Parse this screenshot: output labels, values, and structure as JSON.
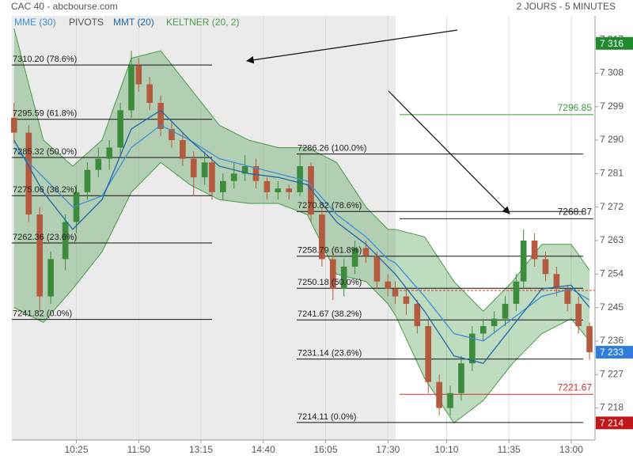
{
  "chart_data": {
    "type": "candlestick",
    "title": "CAC 40 - abcbourse.com",
    "subtitle": "2 JOURS - 5 MINUTES",
    "up_color": "#3d8b3d",
    "down_color": "#b35a3f",
    "x": [
      0,
      4,
      7,
      10,
      14,
      17,
      20,
      23,
      26,
      29,
      32,
      34,
      37,
      40,
      43,
      46,
      49,
      52,
      54,
      57,
      60,
      63,
      66,
      69,
      72,
      75,
      78,
      81,
      84,
      87,
      90,
      93,
      96,
      99,
      102,
      104,
      107,
      110,
      113,
      116,
      119,
      122,
      125,
      128,
      131,
      134,
      137,
      139,
      142,
      145,
      148,
      151,
      154,
      157
    ],
    "open": [
      7296,
      7292,
      7270,
      7248,
      7258,
      7268,
      7276,
      7282,
      7285,
      7288,
      7298,
      7310,
      7305,
      7300,
      7293,
      7290,
      7285,
      7280,
      7284,
      7276,
      7279,
      7281,
      7283,
      7279,
      7276,
      7277,
      7276,
      7283,
      7270,
      7258,
      7250,
      7256,
      7261,
      7259,
      7252,
      7250,
      7248,
      7246,
      7240,
      7225,
      7218,
      7222,
      7230,
      7238,
      7240,
      7242,
      7246,
      7252,
      7263,
      7258,
      7254,
      7250,
      7246,
      7240
    ],
    "high": [
      7300,
      7294,
      7272,
      7260,
      7270,
      7278,
      7284,
      7288,
      7290,
      7300,
      7314,
      7312,
      7307,
      7302,
      7295,
      7292,
      7287,
      7287,
      7285,
      7281,
      7284,
      7286,
      7285,
      7280,
      7279,
      7278,
      7286,
      7284,
      7272,
      7260,
      7258,
      7263,
      7263,
      7260,
      7254,
      7252,
      7250,
      7247,
      7242,
      7227,
      7224,
      7232,
      7240,
      7242,
      7244,
      7248,
      7254,
      7266,
      7265,
      7260,
      7256,
      7251,
      7248,
      7241
    ],
    "low": [
      7289,
      7268,
      7244,
      7246,
      7255,
      7265,
      7274,
      7280,
      7282,
      7286,
      7296,
      7303,
      7298,
      7291,
      7288,
      7283,
      7275,
      7278,
      7274,
      7274,
      7277,
      7279,
      7277,
      7274,
      7274,
      7274,
      7275,
      7268,
      7256,
      7247,
      7248,
      7254,
      7257,
      7250,
      7248,
      7246,
      7243,
      7238,
      7222,
      7216,
      7216,
      7220,
      7228,
      7236,
      7238,
      7240,
      7244,
      7250,
      7256,
      7252,
      7248,
      7244,
      7238,
      7231
    ],
    "close": [
      7292,
      7270,
      7248,
      7258,
      7268,
      7276,
      7282,
      7285,
      7288,
      7298,
      7310,
      7305,
      7300,
      7293,
      7290,
      7285,
      7280,
      7284,
      7276,
      7279,
      7281,
      7283,
      7279,
      7276,
      7277,
      7276,
      7283,
      7270,
      7258,
      7250,
      7256,
      7261,
      7259,
      7252,
      7250,
      7248,
      7246,
      7240,
      7225,
      7218,
      7222,
      7230,
      7238,
      7240,
      7242,
      7246,
      7252,
      7263,
      7258,
      7254,
      7250,
      7246,
      7240,
      7233
    ],
    "xlim": [
      -0.6,
      158.5
    ],
    "xticks": [
      {
        "value": 17,
        "label": "10:25"
      },
      {
        "value": 34,
        "label": "11:50"
      },
      {
        "value": 51,
        "label": "13:15"
      },
      {
        "value": 68,
        "label": "14:40"
      },
      {
        "value": 85,
        "label": "16:05"
      },
      {
        "value": 102,
        "label": "17:30"
      },
      {
        "value": 118,
        "label": "10:10"
      },
      {
        "value": 135,
        "label": "11:35"
      },
      {
        "value": 152,
        "label": "13:00"
      }
    ],
    "ylim": [
      7209.4,
      7323.4
    ],
    "yticks": [
      {
        "value": 7218,
        "label": "7 218"
      },
      {
        "value": 7227,
        "label": "7 227"
      },
      {
        "value": 7236,
        "label": "7 236"
      },
      {
        "value": 7245,
        "label": "7 245"
      },
      {
        "value": 7254,
        "label": "7 254"
      },
      {
        "value": 7263,
        "label": "7 263"
      },
      {
        "value": 7272,
        "label": "7 272"
      },
      {
        "value": 7281,
        "label": "7 281"
      },
      {
        "value": 7290,
        "label": "7 290"
      },
      {
        "value": 7299,
        "label": "7 299"
      },
      {
        "value": 7308,
        "label": "7 308"
      },
      {
        "value": 7317,
        "label": "7 317"
      }
    ],
    "series": [
      {
        "name": "MME (30)",
        "color": "#3d8fd8",
        "x": [
          0,
          8,
          16,
          24,
          32,
          40,
          48,
          56,
          64,
          72,
          80,
          88,
          96,
          102,
          104,
          112,
          120,
          128,
          136,
          144,
          152,
          157
        ],
        "values": [
          7288,
          7280,
          7272,
          7275,
          7288,
          7294,
          7290,
          7285,
          7283,
          7281,
          7279,
          7270,
          7264,
          7258,
          7257,
          7248,
          7238,
          7236,
          7242,
          7248,
          7250,
          7247
        ]
      },
      {
        "name": "MMT (20)",
        "color": "#1f66a8",
        "x": [
          0,
          8,
          16,
          24,
          32,
          40,
          48,
          56,
          64,
          72,
          80,
          88,
          96,
          102,
          104,
          112,
          120,
          128,
          136,
          144,
          152,
          157
        ],
        "values": [
          7290,
          7276,
          7266,
          7274,
          7293,
          7298,
          7290,
          7283,
          7281,
          7280,
          7278,
          7268,
          7262,
          7256,
          7254,
          7244,
          7232,
          7230,
          7240,
          7250,
          7251,
          7245
        ]
      }
    ],
    "keltner": {
      "name": "KELTNER (20, 2)",
      "color": "#4a9a4a",
      "x": [
        0,
        8,
        16,
        24,
        32,
        40,
        48,
        56,
        64,
        72,
        80,
        88,
        96,
        102,
        104,
        112,
        120,
        128,
        136,
        144,
        152,
        157
      ],
      "upper": [
        7320,
        7290,
        7283,
        7290,
        7312,
        7314,
        7304,
        7294,
        7290,
        7288,
        7288,
        7284,
        7272,
        7266,
        7266,
        7264,
        7252,
        7244,
        7252,
        7262,
        7262,
        7255
      ],
      "lower": [
        7245,
        7241,
        7250,
        7260,
        7276,
        7284,
        7278,
        7274,
        7273,
        7273,
        7270,
        7254,
        7252,
        7246,
        7243,
        7226,
        7214,
        7220,
        7230,
        7238,
        7242,
        7236
      ]
    },
    "pivots_legend": {
      "name": "PIVOTS",
      "color": "#555555"
    },
    "fibonacci": [
      {
        "levels": [
          {
            "value": 7310.2,
            "label": "7310.20  (78.6%)"
          },
          {
            "value": 7295.59,
            "label": "7295.59  (61.8%)"
          },
          {
            "value": 7285.32,
            "label": "7285.32  (50.0%)"
          },
          {
            "value": 7275.06,
            "label": "7275.06  (38.2%)"
          },
          {
            "value": 7262.36,
            "label": "7262.36  (23.6%)"
          },
          {
            "value": 7241.82,
            "label": "7241.82  (0.0%)"
          }
        ]
      },
      {
        "levels": [
          {
            "value": 7286.26,
            "label": "7286.26  (100.0%)"
          },
          {
            "value": 7270.82,
            "label": "7270.82  (78.6%)"
          },
          {
            "value": 7258.79,
            "label": "7258.79  (61.8%)"
          },
          {
            "value": 7250.18,
            "label": "7250.18  (50.0%)"
          },
          {
            "value": 7241.67,
            "label": "7241.67  (38.2%)"
          },
          {
            "value": 7231.14,
            "label": "7231.14  (23.6%)"
          },
          {
            "value": 7214.11,
            "label": "7214.11  (0.0%)"
          }
        ]
      }
    ],
    "pivots": [
      {
        "value": 7296.85,
        "color": "#3c9a3c"
      },
      {
        "value": 7268.87,
        "color": "#222222"
      },
      {
        "value": 7221.67,
        "color": "#d03030"
      }
    ],
    "dashed_level": {
      "value": 7249.6,
      "color": "#d03030"
    },
    "price_tags": [
      {
        "value": 7316,
        "label": "7 316",
        "color": "#1f8a2e"
      },
      {
        "value": 7233,
        "label": "7 233",
        "color": "#2f7de0"
      },
      {
        "value": 7214,
        "label": "7 214",
        "color": "#c01818"
      }
    ]
  }
}
